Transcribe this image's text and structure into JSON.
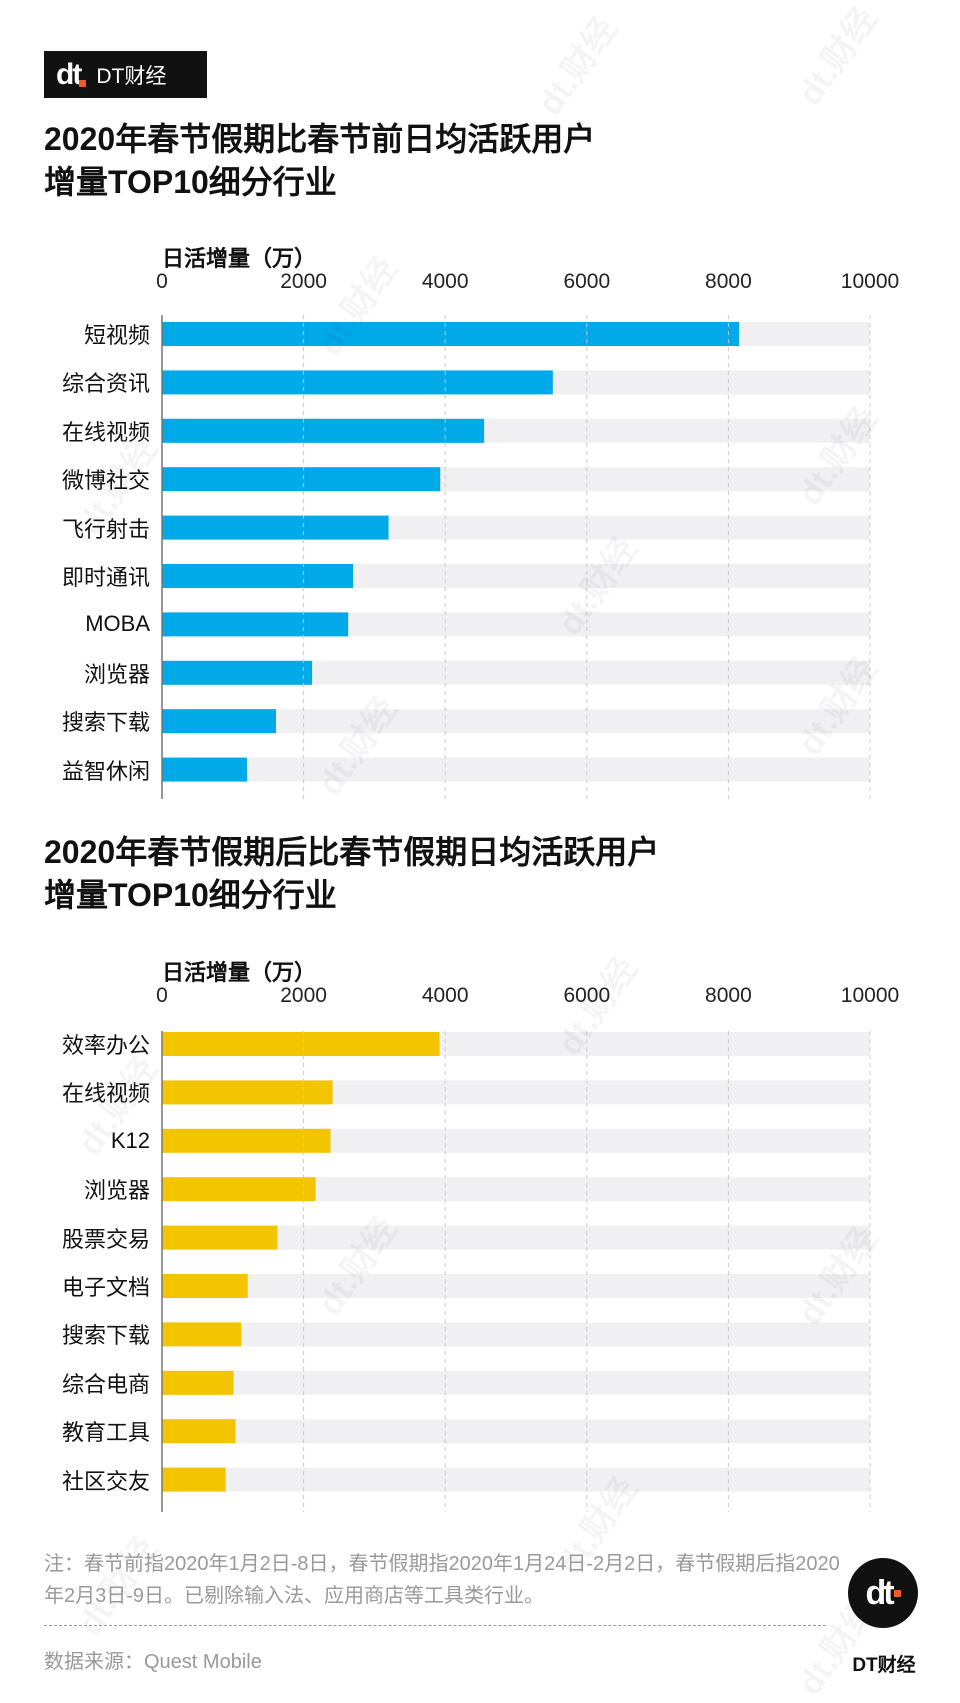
{
  "brand": {
    "logo_text": "DT财经",
    "logo_mark": "dt",
    "watermark": "dt.财经"
  },
  "chart_data": [
    {
      "type": "bar",
      "orientation": "horizontal",
      "title_lines": [
        "2020年春节假期比春节前日均活跃用户",
        "增量TOP10细分行业"
      ],
      "xlabel": "日活增量（万）",
      "ylabel": "",
      "xlim": [
        0,
        10000
      ],
      "xticks": [
        "0",
        "2000",
        "4000",
        "6000",
        "8000",
        "10000"
      ],
      "grid": true,
      "bar_color": "#00A9E8",
      "track_color": "#F0F0F2",
      "categories": [
        "短视频",
        "综合资讯",
        "在线视频",
        "微博社交",
        "飞行射击",
        "即时通讯",
        "MOBA",
        "浏览器",
        "搜索下载",
        "益智休闲"
      ],
      "values": [
        8150,
        5520,
        4550,
        3930,
        3200,
        2700,
        2630,
        2120,
        1610,
        1200
      ]
    },
    {
      "type": "bar",
      "orientation": "horizontal",
      "title_lines": [
        "2020年春节假期后比春节假期日均活跃用户",
        "增量TOP10细分行业"
      ],
      "xlabel": "日活增量（万）",
      "ylabel": "",
      "xlim": [
        0,
        10000
      ],
      "xticks": [
        "0",
        "2000",
        "4000",
        "6000",
        "8000",
        "10000"
      ],
      "grid": true,
      "bar_color": "#F2C500",
      "track_color": "#F0F0F2",
      "categories": [
        "效率办公",
        "在线视频",
        "K12",
        "浏览器",
        "股票交易",
        "电子文档",
        "搜索下载",
        "综合电商",
        "教育工具",
        "社区交友"
      ],
      "values": [
        3920,
        2410,
        2380,
        2170,
        1630,
        1210,
        1120,
        1010,
        1040,
        900
      ]
    }
  ],
  "footer": {
    "note": "注：春节前指2020年1月2日-8日，春节假期指2020年1月24日-2月2日，春节假期后指2020年2月3日-9日。已剔除输入法、应用商店等工具类行业。",
    "source": "数据来源：Quest Mobile",
    "brand_text": "DT财经"
  }
}
